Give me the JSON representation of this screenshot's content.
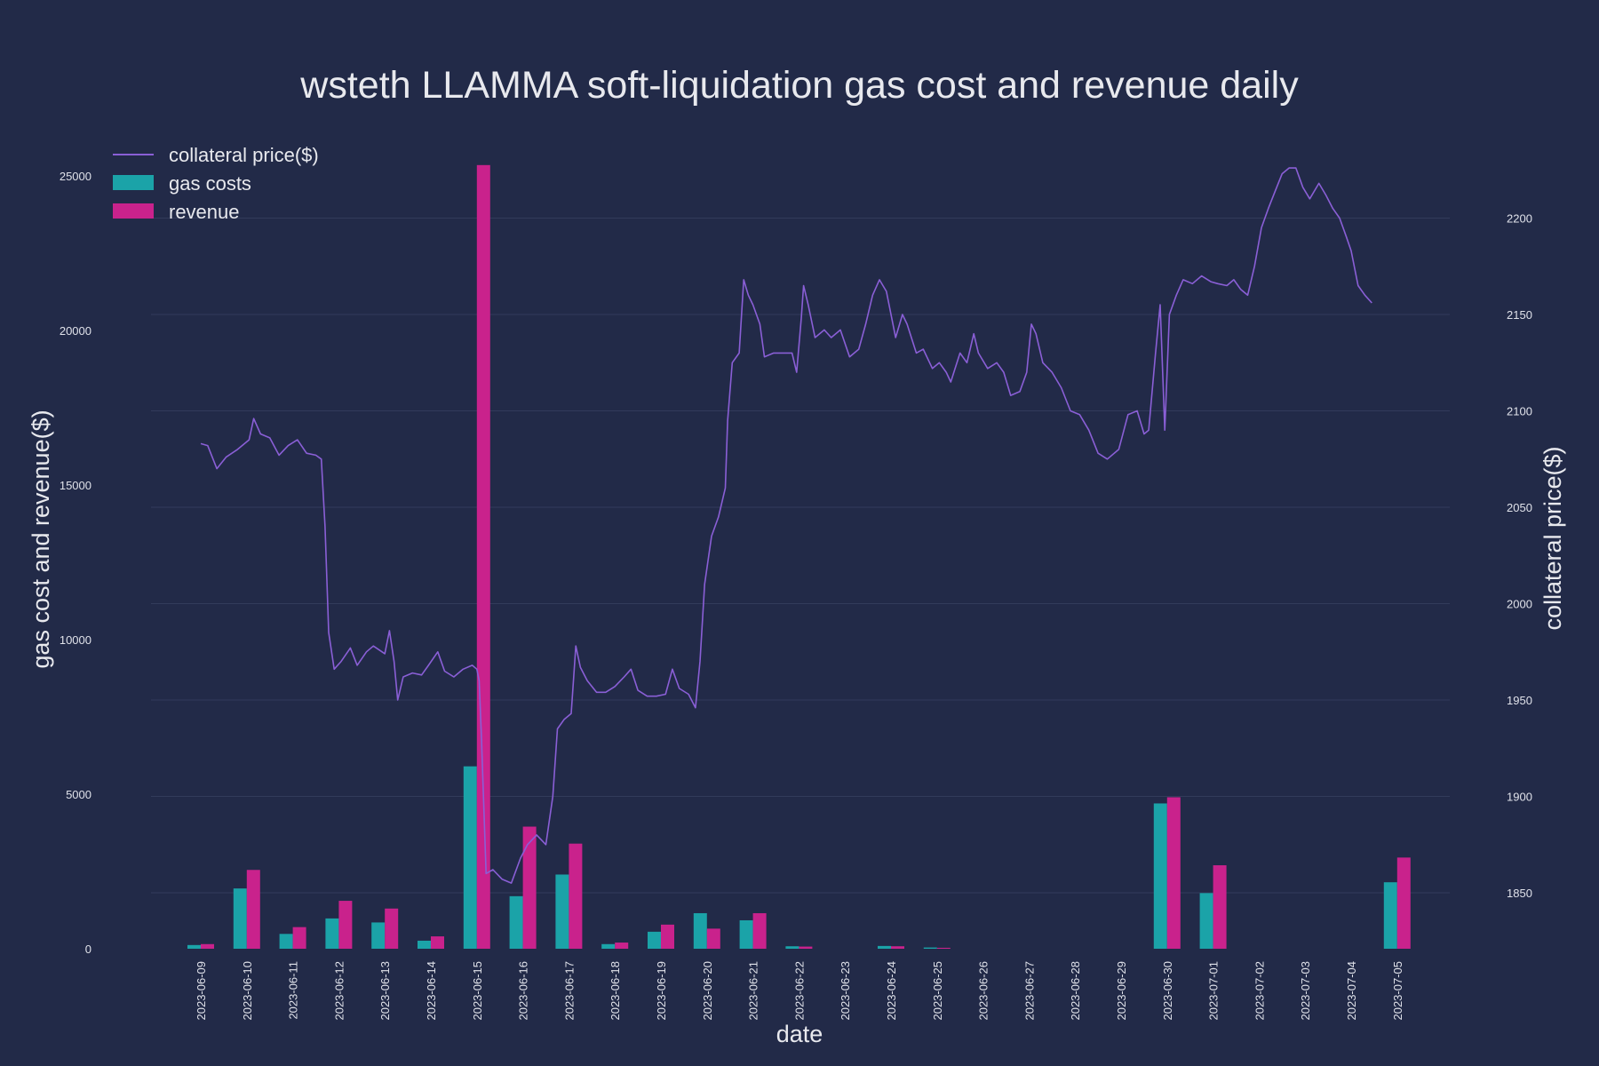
{
  "chart_data": {
    "type": "bar+line",
    "title": "wsteth LLAMMA soft-liquidation gas cost and revenue daily",
    "xlabel": "date",
    "ylabel_left": "gas cost and revenue($)",
    "ylabel_right": "collateral price($)",
    "ylim_left": [
      0,
      25500
    ],
    "ylim_right": [
      1820,
      2235
    ],
    "yticks_left": [
      "0",
      "5000",
      "10000",
      "15000",
      "20000",
      "25000"
    ],
    "yticks_right": [
      "1850",
      "1900",
      "1950",
      "2000",
      "2050",
      "2100",
      "2150",
      "2200"
    ],
    "legend_position": "top-left",
    "colors": {
      "background": "#222a48",
      "price_line": "#8a5fd6",
      "gas_costs": "#1ba3a8",
      "revenue": "#c9228c",
      "grid": "#323b5b"
    },
    "categories": [
      "2023-06-09",
      "2023-06-10",
      "2023-06-11",
      "2023-06-12",
      "2023-06-13",
      "2023-06-14",
      "2023-06-15",
      "2023-06-16",
      "2023-06-17",
      "2023-06-18",
      "2023-06-19",
      "2023-06-20",
      "2023-06-21",
      "2023-06-22",
      "2023-06-23",
      "2023-06-24",
      "2023-06-25",
      "2023-06-26",
      "2023-06-27",
      "2023-06-28",
      "2023-06-29",
      "2023-06-30",
      "2023-07-01",
      "2023-07-02",
      "2023-07-03",
      "2023-07-04",
      "2023-07-05"
    ],
    "series": [
      {
        "name": "gas costs",
        "kind": "bar",
        "values": [
          120,
          1950,
          480,
          980,
          850,
          260,
          5900,
          1700,
          2400,
          150,
          550,
          1150,
          920,
          80,
          0,
          90,
          40,
          0,
          0,
          0,
          0,
          4700,
          1800,
          0,
          0,
          0,
          2150
        ]
      },
      {
        "name": "revenue",
        "kind": "bar",
        "values": [
          150,
          2550,
          700,
          1550,
          1300,
          400,
          25350,
          3950,
          3400,
          200,
          780,
          650,
          1150,
          70,
          0,
          80,
          30,
          0,
          0,
          0,
          0,
          4900,
          2700,
          0,
          0,
          0,
          2950
        ]
      },
      {
        "name": "collateral price($)",
        "kind": "line",
        "axis": "right",
        "points": [
          [
            0.0,
            2083
          ],
          [
            0.15,
            2082
          ],
          [
            0.35,
            2070
          ],
          [
            0.55,
            2076
          ],
          [
            0.8,
            2080
          ],
          [
            1.05,
            2085
          ],
          [
            1.15,
            2096
          ],
          [
            1.3,
            2088
          ],
          [
            1.5,
            2086
          ],
          [
            1.7,
            2077
          ],
          [
            1.9,
            2082
          ],
          [
            2.1,
            2085
          ],
          [
            2.3,
            2078
          ],
          [
            2.5,
            2077
          ],
          [
            2.62,
            2075
          ],
          [
            2.7,
            2040
          ],
          [
            2.78,
            1985
          ],
          [
            2.9,
            1966
          ],
          [
            3.05,
            1970
          ],
          [
            3.25,
            1977
          ],
          [
            3.4,
            1968
          ],
          [
            3.6,
            1975
          ],
          [
            3.75,
            1978
          ],
          [
            4.0,
            1974
          ],
          [
            4.1,
            1986
          ],
          [
            4.2,
            1970
          ],
          [
            4.28,
            1950
          ],
          [
            4.4,
            1962
          ],
          [
            4.6,
            1964
          ],
          [
            4.8,
            1963
          ],
          [
            4.95,
            1968
          ],
          [
            5.15,
            1975
          ],
          [
            5.3,
            1965
          ],
          [
            5.5,
            1962
          ],
          [
            5.7,
            1966
          ],
          [
            5.9,
            1968
          ],
          [
            6.0,
            1966
          ],
          [
            6.05,
            1960
          ],
          [
            6.1,
            1930
          ],
          [
            6.2,
            1860
          ],
          [
            6.35,
            1862
          ],
          [
            6.55,
            1857
          ],
          [
            6.75,
            1855
          ],
          [
            6.95,
            1868
          ],
          [
            7.1,
            1875
          ],
          [
            7.3,
            1880
          ],
          [
            7.5,
            1875
          ],
          [
            7.65,
            1900
          ],
          [
            7.75,
            1935
          ],
          [
            7.9,
            1940
          ],
          [
            8.05,
            1943
          ],
          [
            8.15,
            1978
          ],
          [
            8.25,
            1967
          ],
          [
            8.4,
            1960
          ],
          [
            8.6,
            1954
          ],
          [
            8.8,
            1954
          ],
          [
            9.0,
            1957
          ],
          [
            9.2,
            1962
          ],
          [
            9.35,
            1966
          ],
          [
            9.5,
            1955
          ],
          [
            9.7,
            1952
          ],
          [
            9.9,
            1952
          ],
          [
            10.1,
            1953
          ],
          [
            10.25,
            1966
          ],
          [
            10.4,
            1956
          ],
          [
            10.6,
            1953
          ],
          [
            10.75,
            1946
          ],
          [
            10.85,
            1970
          ],
          [
            10.95,
            2010
          ],
          [
            11.1,
            2035
          ],
          [
            11.25,
            2045
          ],
          [
            11.4,
            2060
          ],
          [
            11.45,
            2095
          ],
          [
            11.55,
            2125
          ],
          [
            11.7,
            2130
          ],
          [
            11.8,
            2168
          ],
          [
            11.9,
            2160
          ],
          [
            12.0,
            2155
          ],
          [
            12.15,
            2145
          ],
          [
            12.25,
            2128
          ],
          [
            12.45,
            2130
          ],
          [
            12.65,
            2130
          ],
          [
            12.85,
            2130
          ],
          [
            12.95,
            2120
          ],
          [
            13.05,
            2148
          ],
          [
            13.1,
            2165
          ],
          [
            13.2,
            2155
          ],
          [
            13.35,
            2138
          ],
          [
            13.55,
            2142
          ],
          [
            13.7,
            2138
          ],
          [
            13.9,
            2142
          ],
          [
            14.1,
            2128
          ],
          [
            14.3,
            2132
          ],
          [
            14.45,
            2145
          ],
          [
            14.6,
            2160
          ],
          [
            14.75,
            2168
          ],
          [
            14.9,
            2162
          ],
          [
            15.1,
            2138
          ],
          [
            15.25,
            2150
          ],
          [
            15.35,
            2145
          ],
          [
            15.55,
            2130
          ],
          [
            15.7,
            2132
          ],
          [
            15.9,
            2122
          ],
          [
            16.05,
            2125
          ],
          [
            16.2,
            2120
          ],
          [
            16.3,
            2115
          ],
          [
            16.5,
            2130
          ],
          [
            16.65,
            2125
          ],
          [
            16.8,
            2140
          ],
          [
            16.9,
            2130
          ],
          [
            17.1,
            2122
          ],
          [
            17.3,
            2125
          ],
          [
            17.45,
            2120
          ],
          [
            17.6,
            2108
          ],
          [
            17.8,
            2110
          ],
          [
            17.95,
            2120
          ],
          [
            18.05,
            2145
          ],
          [
            18.15,
            2140
          ],
          [
            18.3,
            2125
          ],
          [
            18.5,
            2120
          ],
          [
            18.7,
            2112
          ],
          [
            18.9,
            2100
          ],
          [
            19.1,
            2098
          ],
          [
            19.3,
            2090
          ],
          [
            19.5,
            2078
          ],
          [
            19.7,
            2075
          ],
          [
            19.95,
            2080
          ],
          [
            20.15,
            2098
          ],
          [
            20.35,
            2100
          ],
          [
            20.5,
            2088
          ],
          [
            20.6,
            2090
          ],
          [
            20.75,
            2130
          ],
          [
            20.85,
            2155
          ],
          [
            20.95,
            2090
          ],
          [
            21.05,
            2150
          ],
          [
            21.2,
            2160
          ],
          [
            21.35,
            2168
          ],
          [
            21.55,
            2166
          ],
          [
            21.75,
            2170
          ],
          [
            21.95,
            2167
          ],
          [
            22.1,
            2166
          ],
          [
            22.3,
            2165
          ],
          [
            22.45,
            2168
          ],
          [
            22.6,
            2163
          ],
          [
            22.75,
            2160
          ],
          [
            22.9,
            2175
          ],
          [
            23.05,
            2195
          ],
          [
            23.2,
            2205
          ],
          [
            23.35,
            2214
          ],
          [
            23.5,
            2223
          ],
          [
            23.65,
            2226
          ],
          [
            23.8,
            2226
          ],
          [
            23.95,
            2216
          ],
          [
            24.1,
            2210
          ],
          [
            24.3,
            2218
          ],
          [
            24.45,
            2212
          ],
          [
            24.6,
            2205
          ],
          [
            24.75,
            2200
          ],
          [
            24.9,
            2190
          ],
          [
            25.0,
            2183
          ],
          [
            25.15,
            2165
          ],
          [
            25.3,
            2160
          ],
          [
            25.45,
            2156
          ]
        ]
      }
    ]
  }
}
